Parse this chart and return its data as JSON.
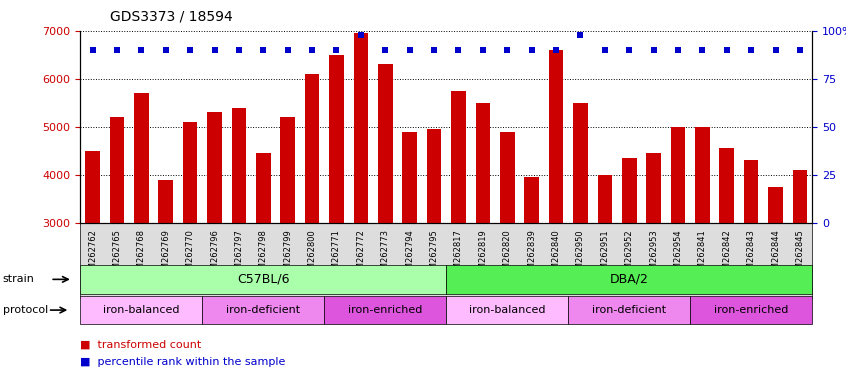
{
  "title": "GDS3373 / 18594",
  "samples": [
    "GSM262762",
    "GSM262765",
    "GSM262768",
    "GSM262769",
    "GSM262770",
    "GSM262796",
    "GSM262797",
    "GSM262798",
    "GSM262799",
    "GSM262800",
    "GSM262771",
    "GSM262772",
    "GSM262773",
    "GSM262794",
    "GSM262795",
    "GSM262817",
    "GSM262819",
    "GSM262820",
    "GSM262839",
    "GSM262840",
    "GSM262950",
    "GSM262951",
    "GSM262952",
    "GSM262953",
    "GSM262954",
    "GSM262841",
    "GSM262842",
    "GSM262843",
    "GSM262844",
    "GSM262845"
  ],
  "bar_values": [
    4500,
    5200,
    5700,
    3900,
    5100,
    5300,
    5400,
    4450,
    5200,
    6100,
    6500,
    6950,
    6300,
    4900,
    4950,
    5750,
    5500,
    4900,
    3950,
    6600,
    5500,
    4000,
    4350,
    4450,
    5000,
    5000,
    4550,
    4300,
    3750,
    4100
  ],
  "percentile_values": [
    90,
    90,
    90,
    90,
    90,
    90,
    90,
    90,
    90,
    90,
    90,
    98,
    90,
    90,
    90,
    90,
    90,
    90,
    90,
    90,
    98,
    90,
    90,
    90,
    90,
    90,
    90,
    90,
    90,
    90
  ],
  "bar_color": "#cc0000",
  "percentile_color": "#0000cc",
  "ylim_left": [
    3000,
    7000
  ],
  "ylim_right": [
    0,
    100
  ],
  "yticks_left": [
    3000,
    4000,
    5000,
    6000,
    7000
  ],
  "yticks_right": [
    0,
    25,
    50,
    75,
    100
  ],
  "strain_groups": [
    {
      "label": "C57BL/6",
      "start": 0,
      "end": 15,
      "color": "#aaffaa"
    },
    {
      "label": "DBA/2",
      "start": 15,
      "end": 30,
      "color": "#55ee55"
    }
  ],
  "protocol_groups": [
    {
      "label": "iron-balanced",
      "start": 0,
      "end": 5,
      "color": "#ffbbff"
    },
    {
      "label": "iron-deficient",
      "start": 5,
      "end": 10,
      "color": "#ee88ee"
    },
    {
      "label": "iron-enriched",
      "start": 10,
      "end": 15,
      "color": "#dd55dd"
    },
    {
      "label": "iron-balanced",
      "start": 15,
      "end": 20,
      "color": "#ffbbff"
    },
    {
      "label": "iron-deficient",
      "start": 20,
      "end": 25,
      "color": "#ee88ee"
    },
    {
      "label": "iron-enriched",
      "start": 25,
      "end": 30,
      "color": "#dd55dd"
    }
  ],
  "bg_color": "#ffffff",
  "bar_color_red": "#cc0000",
  "dot_color_blue": "#0000cc",
  "tick_color_left": "#cc0000",
  "tick_color_right": "#0000cc",
  "title_fontsize": 10,
  "bar_width": 0.6,
  "xtick_bg_color": "#dddddd"
}
